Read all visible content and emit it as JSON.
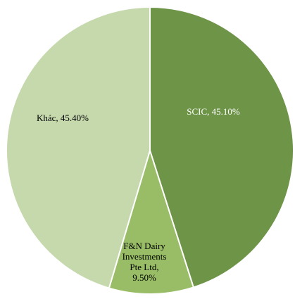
{
  "chart_data": {
    "type": "pie",
    "title": "",
    "start_angle_deg": 0,
    "direction": "clockwise",
    "legend": "none",
    "series": [
      {
        "label": "SCIC, 45.10%",
        "value": 45.1,
        "color": "#6e9448",
        "label_color": "#ffffff"
      },
      {
        "label_lines": [
          "F&N Dairy",
          "Investments",
          "Pte Ltd,",
          "9.50%"
        ],
        "value": 9.5,
        "color": "#99bd66",
        "label_color": "#000000"
      },
      {
        "label": "Khác, 45.40%",
        "value": 45.4,
        "color": "#c5d9ad",
        "label_color": "#000000"
      }
    ]
  }
}
